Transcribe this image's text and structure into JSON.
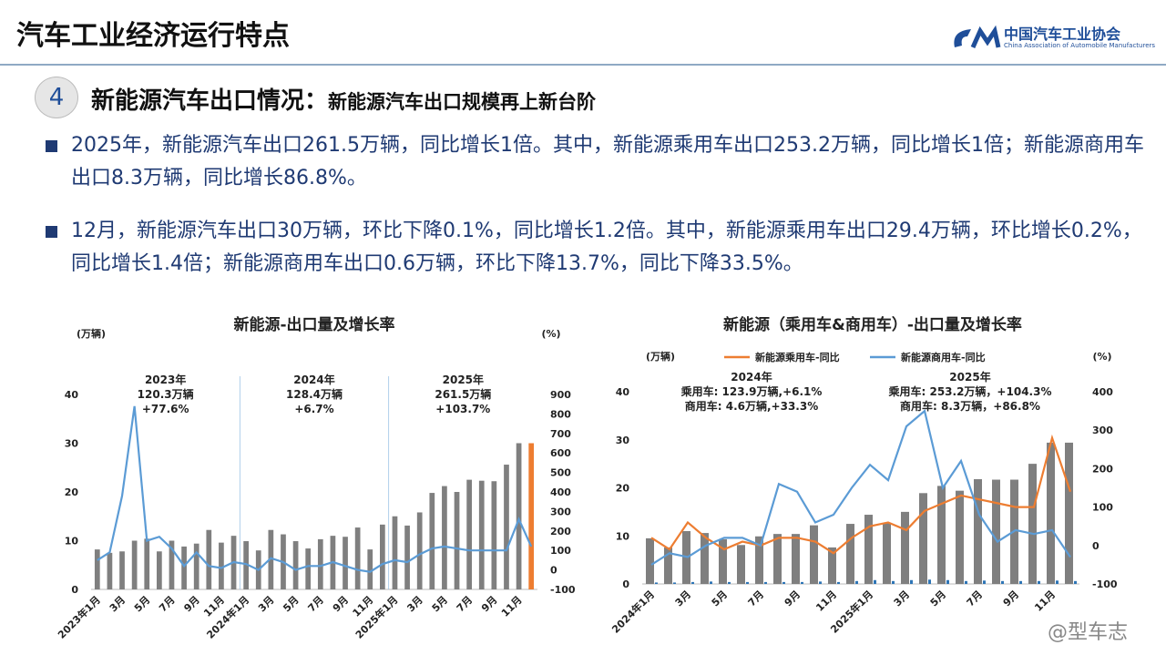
{
  "header": {
    "title": "汽车工业经济运行特点",
    "logo_name": "中国汽车工业协会",
    "logo_en": "China Association of Automobile Manufacturers"
  },
  "section": {
    "number": "4",
    "title": "新能源汽车出口情况：",
    "subtitle": "新能源汽车出口规模再上新台阶"
  },
  "bullets": [
    "2025年，新能源汽车出口261.5万辆，同比增长1倍。其中，新能源乘用车出口253.2万辆，同比增长1倍；新能源商用车出口8.3万辆，同比增长86.8%。",
    "12月，新能源汽车出口30万辆，环比下降0.1%，同比增长1.2倍。其中，新能源乘用车出口29.4万辆，环比增长0.2%，同比增长1.4倍；新能源商用车出口0.6万辆，环比下降13.7%，同比下降33.5%。"
  ],
  "watermark": "@型车志",
  "chart_data": [
    {
      "type": "combo",
      "title": "新能源-出口量及增长率",
      "y_unit": "(万辆)",
      "y2_unit": "(%)",
      "categories": [
        "2023年1月",
        null,
        "3月",
        null,
        "5月",
        null,
        "7月",
        null,
        "9月",
        null,
        "11月",
        null,
        "2024年1月",
        null,
        "3月",
        null,
        "5月",
        null,
        "7月",
        null,
        "9月",
        null,
        "11月",
        null,
        "2025年1月",
        null,
        "3月",
        null,
        "5月",
        null,
        "7月",
        null,
        "9月",
        null,
        "11月",
        null
      ],
      "bars": [
        {
          "values": [
            8.2,
            7.5,
            7.8,
            10.0,
            10.4,
            7.8,
            10.0,
            8.8,
            9.4,
            12.2,
            9.6,
            11.0,
            9.9,
            8.0,
            12.2,
            11.3,
            9.9,
            8.4,
            10.3,
            11.0,
            10.8,
            12.7,
            8.2,
            13.3,
            15.0,
            13.1,
            15.8,
            19.8,
            21.2,
            20.0,
            22.5,
            22.3,
            22.2,
            25.6,
            30.0,
            30.0
          ],
          "colors": [
            "#7f7f7f",
            "#7f7f7f",
            "#7f7f7f",
            "#7f7f7f",
            "#7f7f7f",
            "#7f7f7f",
            "#7f7f7f",
            "#7f7f7f",
            "#7f7f7f",
            "#7f7f7f",
            "#7f7f7f",
            "#7f7f7f",
            "#7f7f7f",
            "#7f7f7f",
            "#7f7f7f",
            "#7f7f7f",
            "#7f7f7f",
            "#7f7f7f",
            "#7f7f7f",
            "#7f7f7f",
            "#7f7f7f",
            "#7f7f7f",
            "#7f7f7f",
            "#7f7f7f",
            "#7f7f7f",
            "#7f7f7f",
            "#7f7f7f",
            "#7f7f7f",
            "#7f7f7f",
            "#7f7f7f",
            "#7f7f7f",
            "#7f7f7f",
            "#7f7f7f",
            "#7f7f7f",
            "#7f7f7f",
            "#ed7d31"
          ]
        }
      ],
      "lines": [
        {
          "color": "#5b9bd5",
          "axis": "y2",
          "values": [
            50,
            90,
            380,
            840,
            150,
            170,
            110,
            20,
            90,
            20,
            10,
            40,
            30,
            0,
            60,
            40,
            0,
            20,
            20,
            40,
            20,
            0,
            -10,
            30,
            50,
            40,
            80,
            110,
            120,
            110,
            100,
            100,
            100,
            100,
            260,
            120
          ]
        }
      ],
      "ylim": [
        0,
        40
      ],
      "yticks": [
        0,
        10,
        20,
        30,
        40
      ],
      "y2lim": [
        -100,
        900
      ],
      "y2ticks": [
        -100,
        0,
        100,
        200,
        300,
        400,
        500,
        600,
        700,
        800,
        900
      ],
      "annotations": [
        [
          "2023年",
          "120.3万辆",
          "+77.6%"
        ],
        [
          "2024年",
          "128.4万辆",
          "+6.7%"
        ],
        [
          "2025年",
          "261.5万辆",
          "+103.7%"
        ]
      ],
      "year_dividers": true
    },
    {
      "type": "combo",
      "title": "新能源（乘用车&商用车）-出口量及增长率",
      "y_unit": "(万辆)",
      "y2_unit": "(%)",
      "categories": [
        "2024年1月",
        null,
        "3月",
        null,
        "5月",
        null,
        "7月",
        null,
        "9月",
        null,
        "11月",
        null,
        "2025年1月",
        null,
        "3月",
        null,
        "5月",
        null,
        "7月",
        null,
        "9月",
        null,
        "11月",
        null
      ],
      "bars": [
        {
          "color": "#7f7f7f",
          "values": [
            9.5,
            7.6,
            11.0,
            10.6,
            9.3,
            8.1,
            9.9,
            10.4,
            10.4,
            12.2,
            7.6,
            12.5,
            14.4,
            12.6,
            15.0,
            18.9,
            20.4,
            19.4,
            21.8,
            21.7,
            21.7,
            25.0,
            29.4,
            29.4
          ]
        },
        {
          "color": "#2e75b6",
          "values": [
            0.3,
            0.3,
            0.4,
            0.5,
            0.4,
            0.4,
            0.4,
            0.4,
            0.4,
            0.5,
            0.4,
            0.6,
            0.8,
            0.6,
            0.8,
            0.9,
            0.8,
            0.6,
            0.7,
            0.6,
            0.6,
            0.6,
            0.7,
            0.6
          ]
        }
      ],
      "lines": [
        {
          "name": "新能源乘用车-同比",
          "color": "#ed7d31",
          "axis": "y2",
          "values": [
            20,
            -10,
            60,
            20,
            -10,
            10,
            0,
            20,
            20,
            10,
            -20,
            20,
            50,
            60,
            40,
            90,
            110,
            130,
            120,
            110,
            100,
            100,
            280,
            140
          ]
        },
        {
          "name": "新能源商用车-同比",
          "color": "#5b9bd5",
          "axis": "y2",
          "values": [
            -50,
            -20,
            -30,
            0,
            20,
            20,
            0,
            160,
            140,
            60,
            80,
            150,
            210,
            170,
            310,
            350,
            150,
            220,
            80,
            10,
            40,
            30,
            40,
            -30
          ]
        }
      ],
      "ylim": [
        0,
        40
      ],
      "yticks": [
        0,
        10,
        20,
        30,
        40
      ],
      "y2lim": [
        -100,
        400
      ],
      "y2ticks": [
        -100,
        0,
        100,
        200,
        300,
        400
      ],
      "annotations": [
        [
          "2024年",
          "乘用车: 123.9万辆,+6.1%",
          "商用车: 4.6万辆,+33.3%"
        ],
        [
          "2025年",
          "乘用车: 253.2万辆，+104.3%",
          "商用车: 8.3万辆，+86.8%"
        ]
      ],
      "year_dividers": false
    }
  ]
}
